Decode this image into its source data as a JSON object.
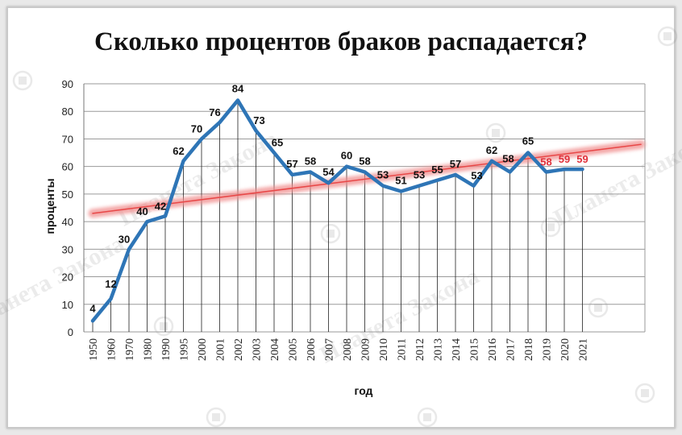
{
  "chart_data": {
    "type": "line",
    "title": "Сколько процентов браков распадается?",
    "xlabel": "год",
    "ylabel": "проценты",
    "categories": [
      "1950",
      "1960",
      "1970",
      "1980",
      "1990",
      "1995",
      "2000",
      "2001",
      "2002",
      "2003",
      "2004",
      "2005",
      "2006",
      "2007",
      "2008",
      "2009",
      "2010",
      "2011",
      "2012",
      "2013",
      "2014",
      "2015",
      "2016",
      "2017",
      "2018",
      "2019",
      "2020",
      "2021"
    ],
    "series": [
      {
        "values": [
          4,
          12,
          30,
          40,
          42,
          62,
          70,
          76,
          84,
          73,
          65,
          57,
          58,
          54,
          60,
          58,
          53,
          51,
          53,
          55,
          57,
          53,
          62,
          58,
          65,
          58,
          59,
          59
        ],
        "color": "#2e75b6"
      }
    ],
    "trendline": {
      "start": 43,
      "end": 68,
      "color": "#f08c8c"
    },
    "red_labels_from_index": 25,
    "ylim": [
      0,
      90
    ],
    "yticks": [
      0,
      10,
      20,
      30,
      40,
      50,
      60,
      70,
      80,
      90
    ],
    "grid": true,
    "watermark": "Планета Закона"
  }
}
